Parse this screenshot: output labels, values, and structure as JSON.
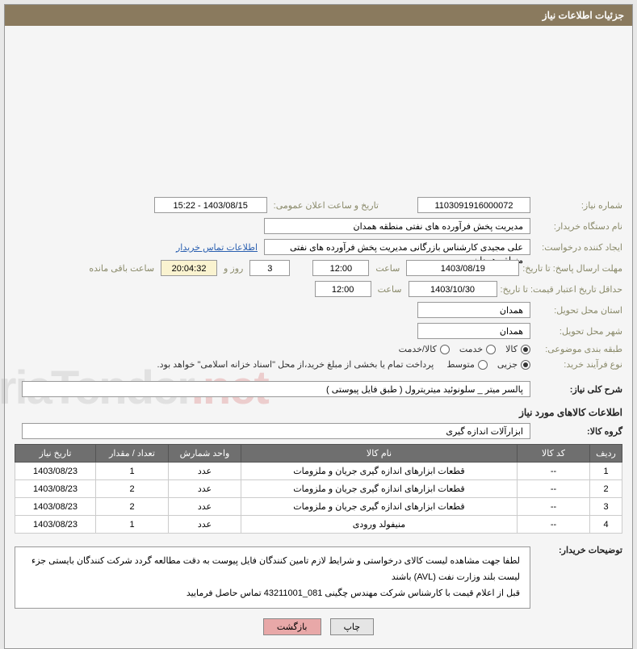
{
  "header": {
    "title": "جزئیات اطلاعات نیاز"
  },
  "labels": {
    "need_no": "شماره نیاز:",
    "announce_dt": "تاریخ و ساعت اعلان عمومی:",
    "buyer_org": "نام دستگاه خریدار:",
    "requester": "ایجاد کننده درخواست:",
    "deadline": "مهلت ارسال پاسخ: تا تاریخ:",
    "hour": "ساعت",
    "days_and": "روز و",
    "remaining": "ساعت باقی مانده",
    "min_validity": "حداقل تاریخ اعتبار قیمت: تا تاریخ:",
    "delivery_province": "استان محل تحویل:",
    "delivery_city": "شهر محل تحویل:",
    "subject_cat": "طبقه بندی موضوعی:",
    "proc_type": "نوع فرآیند خرید:",
    "overall_desc": "شرح کلی نیاز:",
    "goods_group": "گروه کالا:",
    "buyer_notes": "توضیحات خریدار:"
  },
  "fields": {
    "need_no": "1103091916000072",
    "announce_dt": "1403/08/15 - 15:22",
    "buyer_org": "مدیریت پخش فرآورده های نفتی منطقه همدان",
    "requester": "علی مجیدی کارشناس بازرگانی مدیریت پخش فرآورده های نفتی منطقه همدان",
    "contact_link": "اطلاعات تماس خریدار",
    "deadline_date": "1403/08/19",
    "deadline_time": "12:00",
    "days_left": "3",
    "time_left": "20:04:32",
    "validity_date": "1403/10/30",
    "validity_time": "12:00",
    "province": "همدان",
    "city": "همدان",
    "cat_goods": "کالا",
    "cat_service": "خدمت",
    "cat_both": "کالا/خدمت",
    "proc_partial": "جزیی",
    "proc_medium": "متوسط",
    "proc_note": "پرداخت تمام یا بخشی از مبلغ خرید،از محل \"اسناد خزانه اسلامی\" خواهد بود.",
    "overall_desc": "پالسر میتر _ سلونوئید میتریترول ( طبق فایل پیوستی )",
    "goods_group": "ابزارآلات اندازه گیری"
  },
  "sections": {
    "goods_info": "اطلاعات کالاهای مورد نیاز"
  },
  "table": {
    "headers": {
      "idx": "ردیف",
      "code": "کد کالا",
      "name": "نام کالا",
      "unit": "واحد شمارش",
      "qty": "تعداد / مقدار",
      "date": "تاریخ نیاز"
    },
    "rows": [
      {
        "idx": "1",
        "code": "--",
        "name": "قطعات ابزارهای اندازه گیری جریان و ملزومات",
        "unit": "عدد",
        "qty": "1",
        "date": "1403/08/23"
      },
      {
        "idx": "2",
        "code": "--",
        "name": "قطعات ابزارهای اندازه گیری جریان و ملزومات",
        "unit": "عدد",
        "qty": "2",
        "date": "1403/08/23"
      },
      {
        "idx": "3",
        "code": "--",
        "name": "قطعات ابزارهای اندازه گیری جریان و ملزومات",
        "unit": "عدد",
        "qty": "2",
        "date": "1403/08/23"
      },
      {
        "idx": "4",
        "code": "--",
        "name": "منیفولد ورودی",
        "unit": "عدد",
        "qty": "1",
        "date": "1403/08/23"
      }
    ]
  },
  "notes": {
    "l1": "لطفا جهت مشاهده لیست کالای درخواستی و شرایط لازم تامین کنندگان فایل پیوست به دقت مطالعه گردد شرکت کنندگان بایستی جزء لیست بلند وزارت نفت (AVL) باشند",
    "l2": "قبل از اعلام قیمت با کارشناس شرکت مهندس چگینی 081_43211001 تماس حاصل فرمایید"
  },
  "buttons": {
    "print": "چاپ",
    "return": "بازگشت"
  },
  "colors": {
    "header_bg": "#8a7a5e",
    "th_bg": "#6f6f6f",
    "link": "#2a5fb0",
    "btn_return": "#e8a8a8"
  }
}
